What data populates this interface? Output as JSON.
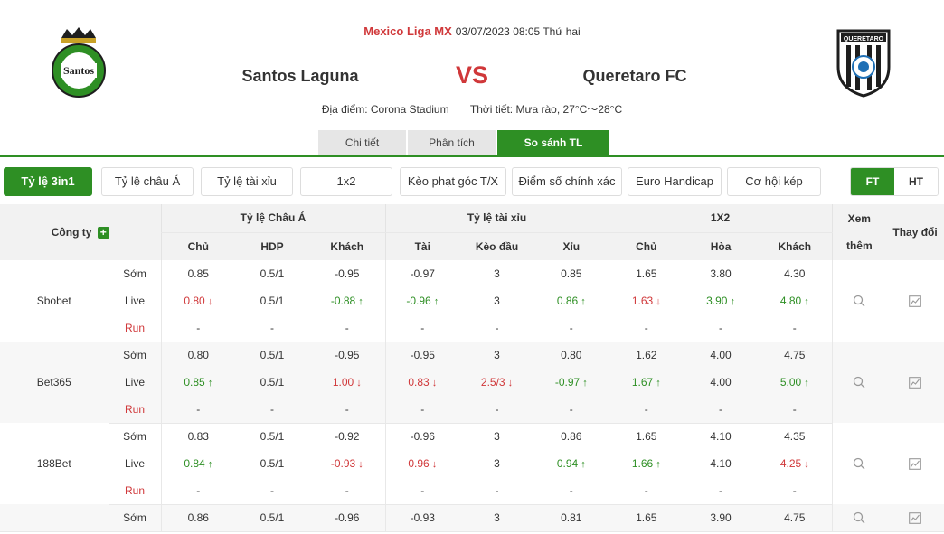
{
  "match": {
    "league": "Mexico Liga MX",
    "datetime": "03/07/2023 08:05 Thứ hai",
    "home_team": "Santos Laguna",
    "away_team": "Queretaro FC",
    "vs": "VS",
    "venue": "Địa điểm: Corona Stadium",
    "weather": "Thời tiết: Mưa rào, 27°C～28°C",
    "home_logo_text": [
      "CLUB",
      "Santos",
      "LAGUNA"
    ],
    "away_logo_text": [
      "QUERETARO"
    ]
  },
  "main_tabs": [
    {
      "label": "Chi tiết",
      "active": false
    },
    {
      "label": "Phân tích",
      "active": false
    },
    {
      "label": "So sánh TL",
      "active": true
    }
  ],
  "filters": [
    {
      "label": "Tỷ lệ 3in1",
      "active": true
    },
    {
      "label": "Tỷ lệ châu Á",
      "active": false
    },
    {
      "label": "Tỷ lệ tài xỉu",
      "active": false
    },
    {
      "label": "1x2",
      "active": false
    },
    {
      "label": "Kèo phạt góc T/X",
      "active": false
    },
    {
      "label": "Điểm số chính xác",
      "active": false
    },
    {
      "label": "Euro Handicap",
      "active": false
    },
    {
      "label": "Cơ hội kép",
      "active": false
    }
  ],
  "period": {
    "ft": "FT",
    "ht": "HT",
    "active": "FT"
  },
  "table": {
    "company_header": "Công ty",
    "groups": [
      "Tỷ lệ Châu Á",
      "Tỷ lệ tài xỉu",
      "1X2"
    ],
    "view_more": "Xem thêm",
    "changes": "Thay đổi",
    "sub_headers": [
      "Chủ",
      "HDP",
      "Khách",
      "Tài",
      "Kèo đầu",
      "Xỉu",
      "Chủ",
      "Hòa",
      "Khách"
    ],
    "rows": [
      {
        "company": "Sbobet",
        "lines": [
          {
            "kind": "Sớm",
            "cells": [
              {
                "v": "0.85"
              },
              {
                "v": "0.5/1"
              },
              {
                "v": "-0.95"
              },
              {
                "v": "-0.97"
              },
              {
                "v": "3"
              },
              {
                "v": "0.85"
              },
              {
                "v": "1.65"
              },
              {
                "v": "3.80"
              },
              {
                "v": "4.30"
              }
            ]
          },
          {
            "kind": "Live",
            "cells": [
              {
                "v": "0.80",
                "d": "down"
              },
              {
                "v": "0.5/1"
              },
              {
                "v": "-0.88",
                "d": "up"
              },
              {
                "v": "-0.96",
                "d": "up"
              },
              {
                "v": "3"
              },
              {
                "v": "0.86",
                "d": "up"
              },
              {
                "v": "1.63",
                "d": "down"
              },
              {
                "v": "3.90",
                "d": "up"
              },
              {
                "v": "4.80",
                "d": "up"
              }
            ]
          },
          {
            "kind": "Run",
            "cells": [
              {
                "v": "-"
              },
              {
                "v": "-"
              },
              {
                "v": "-"
              },
              {
                "v": "-"
              },
              {
                "v": "-"
              },
              {
                "v": "-"
              },
              {
                "v": "-"
              },
              {
                "v": "-"
              },
              {
                "v": "-"
              }
            ]
          }
        ]
      },
      {
        "company": "Bet365",
        "lines": [
          {
            "kind": "Sớm",
            "cells": [
              {
                "v": "0.80"
              },
              {
                "v": "0.5/1"
              },
              {
                "v": "-0.95"
              },
              {
                "v": "-0.95"
              },
              {
                "v": "3"
              },
              {
                "v": "0.80"
              },
              {
                "v": "1.62"
              },
              {
                "v": "4.00"
              },
              {
                "v": "4.75"
              }
            ]
          },
          {
            "kind": "Live",
            "cells": [
              {
                "v": "0.85",
                "d": "up"
              },
              {
                "v": "0.5/1"
              },
              {
                "v": "1.00",
                "d": "down"
              },
              {
                "v": "0.83",
                "d": "down"
              },
              {
                "v": "2.5/3",
                "d": "down"
              },
              {
                "v": "-0.97",
                "d": "up"
              },
              {
                "v": "1.67",
                "d": "up"
              },
              {
                "v": "4.00"
              },
              {
                "v": "5.00",
                "d": "up"
              }
            ]
          },
          {
            "kind": "Run",
            "cells": [
              {
                "v": "-"
              },
              {
                "v": "-"
              },
              {
                "v": "-"
              },
              {
                "v": "-"
              },
              {
                "v": "-"
              },
              {
                "v": "-"
              },
              {
                "v": "-"
              },
              {
                "v": "-"
              },
              {
                "v": "-"
              }
            ]
          }
        ]
      },
      {
        "company": "188Bet",
        "lines": [
          {
            "kind": "Sớm",
            "cells": [
              {
                "v": "0.83"
              },
              {
                "v": "0.5/1"
              },
              {
                "v": "-0.92"
              },
              {
                "v": "-0.96"
              },
              {
                "v": "3"
              },
              {
                "v": "0.86"
              },
              {
                "v": "1.65"
              },
              {
                "v": "4.10"
              },
              {
                "v": "4.35"
              }
            ]
          },
          {
            "kind": "Live",
            "cells": [
              {
                "v": "0.84",
                "d": "up"
              },
              {
                "v": "0.5/1"
              },
              {
                "v": "-0.93",
                "d": "down"
              },
              {
                "v": "0.96",
                "d": "down"
              },
              {
                "v": "3"
              },
              {
                "v": "0.94",
                "d": "up"
              },
              {
                "v": "1.66",
                "d": "up"
              },
              {
                "v": "4.10"
              },
              {
                "v": "4.25",
                "d": "down"
              }
            ]
          },
          {
            "kind": "Run",
            "cells": [
              {
                "v": "-"
              },
              {
                "v": "-"
              },
              {
                "v": "-"
              },
              {
                "v": "-"
              },
              {
                "v": "-"
              },
              {
                "v": "-"
              },
              {
                "v": "-"
              },
              {
                "v": "-"
              },
              {
                "v": "-"
              }
            ]
          }
        ]
      },
      {
        "company": "",
        "lines": [
          {
            "kind": "Sớm",
            "cells": [
              {
                "v": "0.86"
              },
              {
                "v": "0.5/1"
              },
              {
                "v": "-0.96"
              },
              {
                "v": "-0.93"
              },
              {
                "v": "3"
              },
              {
                "v": "0.81"
              },
              {
                "v": "1.65"
              },
              {
                "v": "3.90"
              },
              {
                "v": "4.75"
              }
            ]
          }
        ]
      }
    ]
  },
  "colors": {
    "accent": "#2e8f24",
    "red": "#d0383a"
  },
  "icons": {
    "view": "search-icon",
    "change": "chart-icon",
    "add": "plus-icon",
    "up": "arrow-up-icon",
    "down": "arrow-down-icon"
  }
}
